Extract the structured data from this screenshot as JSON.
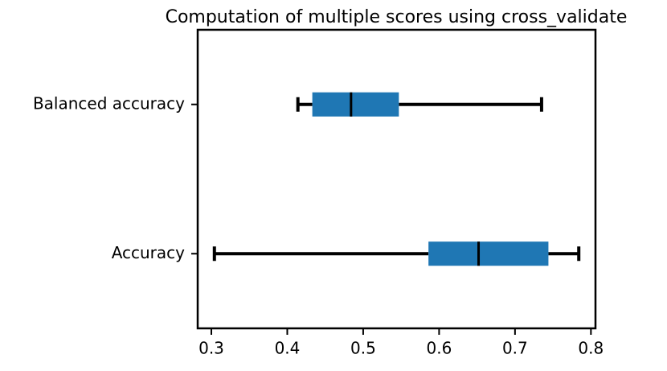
{
  "chart_data": {
    "type": "boxplot",
    "title": "Computation of multiple scores using cross_validate",
    "categories": [
      "Accuracy",
      "Balanced accuracy"
    ],
    "whislo": [
      0.304,
      0.414
    ],
    "q1": [
      0.586,
      0.433
    ],
    "med": [
      0.652,
      0.484
    ],
    "q3": [
      0.744,
      0.547
    ],
    "whishi": [
      0.784,
      0.735
    ],
    "color": "#1f77b4",
    "xlim": [
      0.282,
      0.806
    ],
    "xticks": [
      0.3,
      0.4,
      0.5,
      0.6,
      0.7,
      0.8
    ]
  }
}
